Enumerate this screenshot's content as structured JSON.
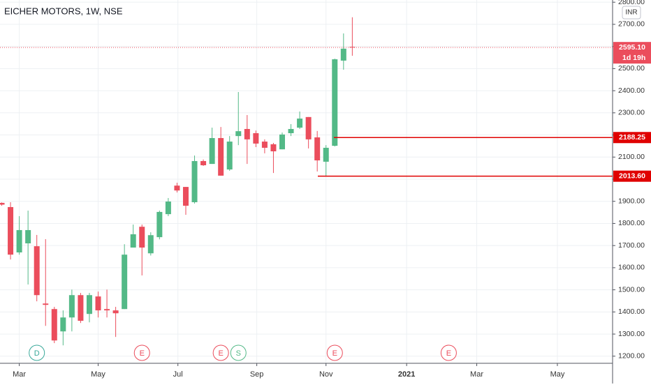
{
  "chart_data": {
    "type": "candlestick",
    "title": "EICHER MOTORS, 1W, NSE",
    "currency": "INR",
    "categories": [
      null,
      null,
      null,
      null,
      null,
      null,
      null,
      null,
      null,
      null,
      null,
      null,
      null,
      null,
      null,
      null,
      null,
      null,
      null,
      null,
      null,
      null,
      null,
      null,
      null,
      null,
      null,
      null,
      null,
      null,
      null,
      null,
      null,
      null,
      null,
      null,
      null,
      null,
      null,
      null,
      null
    ],
    "open": [
      1893,
      1874,
      1669,
      1710,
      1697,
      1438,
      1413,
      1312,
      1375,
      1476,
      1391,
      1470,
      1413,
      1407,
      1413,
      1691,
      1785,
      1665,
      1738,
      1842,
      1971,
      1965,
      1896,
      2082,
      2069,
      2186,
      2044,
      2195,
      2227,
      2208,
      2170,
      2158,
      2135,
      2208,
      2233,
      2281,
      2189,
      2079,
      2151,
      2536,
      2598
    ],
    "high": [
      1895,
      1896,
      1833,
      1858,
      1748,
      1729,
      1423,
      1407,
      1501,
      1486,
      1486,
      1492,
      1501,
      1423,
      1706,
      1795,
      1795,
      1760,
      1858,
      1915,
      1984,
      1965,
      2107,
      2089,
      2233,
      2236,
      2195,
      2394,
      2290,
      2220,
      2180,
      2164,
      2211,
      2249,
      2306,
      2281,
      2218,
      2154,
      2545,
      2659,
      2732
    ],
    "low": [
      1880,
      1637,
      1659,
      1524,
      1448,
      1337,
      1259,
      1249,
      1312,
      1350,
      1353,
      1375,
      1375,
      1287,
      1413,
      1691,
      1565,
      1655,
      1728,
      1833,
      1940,
      1839,
      1890,
      2060,
      2069,
      2016,
      2038,
      2154,
      2069,
      2145,
      2117,
      2028,
      2135,
      2195,
      2227,
      2139,
      2035,
      2016,
      2148,
      2495,
      2558
    ],
    "close": [
      1885,
      1659,
      1770,
      1770,
      1476,
      1432,
      1271,
      1375,
      1476,
      1360,
      1476,
      1407,
      1407,
      1394,
      1659,
      1751,
      1691,
      1747,
      1852,
      1899,
      1949,
      1880,
      2082,
      2063,
      2186,
      2016,
      2170,
      2217,
      2180,
      2161,
      2142,
      2126,
      2202,
      2227,
      2274,
      2180,
      2085,
      2142,
      2542,
      2590,
      2595.1
    ],
    "up_color": "#53b987",
    "down_color": "#eb4d5c",
    "xlim": [
      -0.2,
      69.7
    ],
    "xticks": [
      {
        "value": 2.0,
        "label": "Mar"
      },
      {
        "value": 11.0,
        "label": "May"
      },
      {
        "value": 20.1,
        "label": "Jul"
      },
      {
        "value": 29.1,
        "label": "Sep"
      },
      {
        "value": 37.0,
        "label": "Nov"
      },
      {
        "value": 46.2,
        "label": "2021"
      },
      {
        "value": 54.2,
        "label": "Mar"
      },
      {
        "value": 63.4,
        "label": "May"
      }
    ],
    "ylim": [
      1171,
      2810
    ],
    "yticks": [
      {
        "value": 1200,
        "label": "1200.00"
      },
      {
        "value": 1300,
        "label": "1300.00"
      },
      {
        "value": 1400,
        "label": "1400.00"
      },
      {
        "value": 1500,
        "label": "1500.00"
      },
      {
        "value": 1600,
        "label": "1600.00"
      },
      {
        "value": 1700,
        "label": "1700.00"
      },
      {
        "value": 1800,
        "label": "1800.00"
      },
      {
        "value": 1900,
        "label": "1900.00"
      },
      {
        "value": 2000,
        "label": "2000.00"
      },
      {
        "value": 2100,
        "label": "2100.00"
      },
      {
        "value": 2200,
        "label": "2200.00"
      },
      {
        "value": 2300,
        "label": "2300.00"
      },
      {
        "value": 2400,
        "label": "2400.00"
      },
      {
        "value": 2500,
        "label": "2500.00"
      },
      {
        "value": 2600,
        "label": "2600.00"
      },
      {
        "value": 2700,
        "label": "2700.00"
      },
      {
        "value": 2800,
        "label": "2800.00"
      }
    ],
    "grid": true,
    "last_price": {
      "value": 2595.1,
      "label": "2595.10",
      "countdown": "1d 19h",
      "color": "#eb4d5c"
    },
    "price_lines": [
      {
        "value": 2188.25,
        "label": "2188.25",
        "color": "#e00000"
      },
      {
        "value": 2013.6,
        "label": "2013.60",
        "color": "#e00000"
      }
    ],
    "events": [
      {
        "x": 4,
        "label": "D",
        "color": "#3aa99a"
      },
      {
        "x": 16,
        "label": "E",
        "color": "#eb4d5c"
      },
      {
        "x": 25,
        "label": "E",
        "color": "#eb4d5c"
      },
      {
        "x": 27,
        "label": "S",
        "color": "#53b987"
      },
      {
        "x": 38,
        "label": "E",
        "color": "#eb4d5c"
      },
      {
        "x": 51,
        "label": "E",
        "color": "#eb4d5c"
      }
    ]
  }
}
